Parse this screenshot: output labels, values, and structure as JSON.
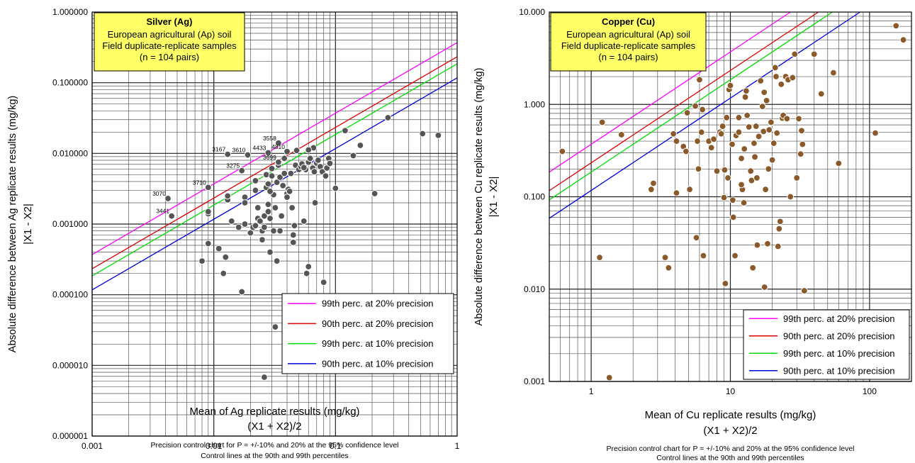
{
  "chart_data": [
    {
      "type": "scatter",
      "log_x": true,
      "log_y": true,
      "title_box": {
        "title": "Silver (Ag)",
        "lines": [
          "European agricultural (Ap) soil",
          "Field duplicate-replicate samples",
          "(n = 104 pairs)"
        ]
      },
      "xlim": [
        0.001,
        1
      ],
      "ylim": [
        1e-06,
        1
      ],
      "x_ticks": [
        0.001,
        0.01,
        0.1,
        1
      ],
      "x_tick_labels": [
        "0.001",
        "0.01",
        "0.1",
        "1"
      ],
      "y_ticks": [
        1e-06,
        1e-05,
        0.0001,
        0.001,
        0.01,
        0.1,
        1
      ],
      "y_tick_labels": [
        "0.000001",
        "0.000010",
        "0.000100",
        "0.001000",
        "0.010000",
        "0.100000",
        "1.000000"
      ],
      "xlabel": "Mean of Ag replicate results (mg/kg)",
      "xlabel2": "(X1 + X2)/2",
      "ylabel": "Absolute difference between Ag replicate results (mg/kg)",
      "ylabel2": "|X1 - X2|",
      "caption": [
        "Precision control chart for P = +/-10% and 20% at the 95% confidence level",
        "Control lines at the 90th and 99th percentiles"
      ],
      "control_lines": [
        {
          "name": "99th perc. at 20% precision",
          "color": "#ff00ff",
          "k": 0.37
        },
        {
          "name": "90th perc. at 20% precision",
          "color": "#e00000",
          "k": 0.233
        },
        {
          "name": "99th perc. at 10% precision",
          "color": "#00dd00",
          "k": 0.185
        },
        {
          "name": "90th perc. at 10% precision",
          "color": "#0000dd",
          "k": 0.117
        }
      ],
      "legend_position": "bottom-right",
      "point_color": "#555555",
      "labels": [
        {
          "text": "3070",
          "x": 0.0042,
          "y": 0.0023
        },
        {
          "text": "3441",
          "x": 0.0045,
          "y": 0.0013
        },
        {
          "text": "3710",
          "x": 0.009,
          "y": 0.0033
        },
        {
          "text": "3167",
          "x": 0.013,
          "y": 0.0097
        },
        {
          "text": "3610",
          "x": 0.019,
          "y": 0.0095
        },
        {
          "text": "3275",
          "x": 0.017,
          "y": 0.0057
        },
        {
          "text": "4433",
          "x": 0.028,
          "y": 0.0102
        },
        {
          "text": "3558",
          "x": 0.034,
          "y": 0.014
        },
        {
          "text": "4810",
          "x": 0.04,
          "y": 0.0106
        },
        {
          "text": "3699",
          "x": 0.034,
          "y": 0.0075
        }
      ],
      "points": [
        [
          0.0042,
          0.0023
        ],
        [
          0.0045,
          0.0013
        ],
        [
          0.009,
          0.0033
        ],
        [
          0.009,
          0.0014
        ],
        [
          0.009,
          0.0015
        ],
        [
          0.009,
          0.00053
        ],
        [
          0.008,
          0.0003
        ],
        [
          0.011,
          0.00045
        ],
        [
          0.012,
          0.0002
        ],
        [
          0.0125,
          0.00034
        ],
        [
          0.013,
          0.0022
        ],
        [
          0.013,
          0.0025
        ],
        [
          0.014,
          0.0011
        ],
        [
          0.016,
          0.0009
        ],
        [
          0.017,
          0.00011
        ],
        [
          0.018,
          0.001
        ],
        [
          0.018,
          0.0024
        ],
        [
          0.018,
          0.002
        ],
        [
          0.02,
          0.00075
        ],
        [
          0.021,
          0.0009
        ],
        [
          0.022,
          0.00095
        ],
        [
          0.022,
          0.003
        ],
        [
          0.023,
          0.0017
        ],
        [
          0.023,
          0.0012
        ],
        [
          0.024,
          0.0011
        ],
        [
          0.025,
          0.0006
        ],
        [
          0.025,
          0.0008
        ],
        [
          0.026,
          0.0013
        ],
        [
          0.026,
          0.0009
        ],
        [
          0.027,
          0.0033
        ],
        [
          0.027,
          0.005
        ],
        [
          0.028,
          0.0037
        ],
        [
          0.028,
          0.0019
        ],
        [
          0.028,
          0.0015
        ],
        [
          0.029,
          0.0004
        ],
        [
          0.029,
          0.0012
        ],
        [
          0.03,
          0.0061
        ],
        [
          0.03,
          0.0048
        ],
        [
          0.031,
          0.0026
        ],
        [
          0.031,
          0.0008
        ],
        [
          0.032,
          0.0017
        ],
        [
          0.032,
          3.5e-05
        ],
        [
          0.033,
          0.0039
        ],
        [
          0.033,
          0.0003
        ],
        [
          0.034,
          0.0068
        ],
        [
          0.035,
          0.0008
        ],
        [
          0.035,
          0.0046
        ],
        [
          0.036,
          0.0013
        ],
        [
          0.037,
          0.0035
        ],
        [
          0.038,
          0.0052
        ],
        [
          0.04,
          0.0027
        ],
        [
          0.04,
          0.0024
        ],
        [
          0.041,
          0.0031
        ],
        [
          0.042,
          0.0029
        ],
        [
          0.043,
          0.0052
        ],
        [
          0.044,
          0.0017
        ],
        [
          0.045,
          0.00055
        ],
        [
          0.045,
          0.0007
        ],
        [
          0.046,
          0.00095
        ],
        [
          0.047,
          0.0068
        ],
        [
          0.05,
          0.0059
        ],
        [
          0.052,
          0.0065
        ],
        [
          0.053,
          0.0071
        ],
        [
          0.055,
          0.0011
        ],
        [
          0.057,
          0.0059
        ],
        [
          0.058,
          0.0002
        ],
        [
          0.06,
          0.00025
        ],
        [
          0.06,
          0.0075
        ],
        [
          0.062,
          0.0085
        ],
        [
          0.065,
          0.0062
        ],
        [
          0.066,
          0.012
        ],
        [
          0.067,
          0.0055
        ],
        [
          0.068,
          0.002
        ],
        [
          0.07,
          0.0073
        ],
        [
          0.072,
          0.008
        ],
        [
          0.075,
          0.0065
        ],
        [
          0.078,
          0.0055
        ],
        [
          0.08,
          0.00015
        ],
        [
          0.083,
          0.0048
        ],
        [
          0.085,
          0.0062
        ],
        [
          0.088,
          0.0085
        ],
        [
          0.09,
          0.0072
        ],
        [
          0.1,
          0.0032
        ],
        [
          0.12,
          0.021
        ],
        [
          0.14,
          0.0093
        ],
        [
          0.16,
          0.013
        ],
        [
          0.21,
          0.0027
        ],
        [
          0.27,
          0.032
        ],
        [
          0.52,
          0.019
        ],
        [
          0.7,
          0.018
        ],
        [
          0.013,
          0.0097
        ],
        [
          0.019,
          0.0095
        ],
        [
          0.017,
          0.0057
        ],
        [
          0.028,
          0.0102
        ],
        [
          0.034,
          0.014
        ],
        [
          0.04,
          0.0106
        ],
        [
          0.034,
          0.0075
        ],
        [
          0.026,
          6.8e-06
        ],
        [
          0.055,
          0.0063
        ],
        [
          0.06,
          0.0112
        ],
        [
          0.022,
          0.0041
        ],
        [
          0.038,
          0.0085
        ],
        [
          0.048,
          0.011
        ],
        [
          0.029,
          0.0029
        ]
      ]
    },
    {
      "type": "scatter",
      "log_x": true,
      "log_y": true,
      "title_box": {
        "title": "Copper (Cu)",
        "lines": [
          "European agricultural (Ap) soil",
          "Field duplicate-replicate samples",
          "(n = 104 pairs)"
        ]
      },
      "xlim": [
        0.5,
        200
      ],
      "ylim": [
        0.001,
        10
      ],
      "x_ticks": [
        1,
        10,
        100
      ],
      "x_tick_labels": [
        "1",
        "10",
        "100"
      ],
      "y_ticks": [
        0.001,
        0.01,
        0.1,
        1,
        10
      ],
      "y_tick_labels": [
        "0.001",
        "0.010",
        "0.100",
        "1.000",
        "10.000"
      ],
      "xlabel": "Mean of Cu replicate results (mg/kg)",
      "xlabel2": "(X1 + X2)/2",
      "ylabel": "Absolute difference between Cu replicate results (mg/kg)",
      "ylabel2": "|X1 - X2|",
      "caption": [
        "Precision control chart for P = +/-10% and 20% at the 95% confidence level",
        "Control lines at the 90th and 99th percentiles"
      ],
      "control_lines": [
        {
          "name": "99th perc. at 20% precision",
          "color": "#ff00ff",
          "k": 0.37
        },
        {
          "name": "90th perc. at 20% precision",
          "color": "#e00000",
          "k": 0.233
        },
        {
          "name": "99th perc. at 10% precision",
          "color": "#00dd00",
          "k": 0.185
        },
        {
          "name": "90th perc. at 10% precision",
          "color": "#0000dd",
          "k": 0.117
        }
      ],
      "legend_position": "bottom-right",
      "point_color": "#8b5a2b",
      "labels": [],
      "points": [
        [
          0.62,
          0.31
        ],
        [
          1.2,
          0.64
        ],
        [
          1.15,
          0.022
        ],
        [
          1.35,
          0.0011
        ],
        [
          1.65,
          0.47
        ],
        [
          2.7,
          0.12
        ],
        [
          2.8,
          0.14
        ],
        [
          3.4,
          0.022
        ],
        [
          3.6,
          0.017
        ],
        [
          3.9,
          0.48
        ],
        [
          4.1,
          0.11
        ],
        [
          4.1,
          0.4
        ],
        [
          4.6,
          0.35
        ],
        [
          4.8,
          0.31
        ],
        [
          4.9,
          0.81
        ],
        [
          5.1,
          0.12
        ],
        [
          5.6,
          0.96
        ],
        [
          5.7,
          0.036
        ],
        [
          5.8,
          0.4
        ],
        [
          5.9,
          0.2
        ],
        [
          6.0,
          1.85
        ],
        [
          6.2,
          0.5
        ],
        [
          6.3,
          0.88
        ],
        [
          6.4,
          0.023
        ],
        [
          7.0,
          0.4
        ],
        [
          7.3,
          0.34
        ],
        [
          7.6,
          0.42
        ],
        [
          8.0,
          0.19
        ],
        [
          8.4,
          0.5
        ],
        [
          8.6,
          0.48
        ],
        [
          9.0,
          0.098
        ],
        [
          9.1,
          0.195
        ],
        [
          9.2,
          0.0115
        ],
        [
          9.4,
          0.72
        ],
        [
          9.6,
          0.16
        ],
        [
          9.8,
          1.45
        ],
        [
          10.0,
          1.6
        ],
        [
          10.3,
          0.37
        ],
        [
          10.4,
          0.092
        ],
        [
          10.5,
          0.06
        ],
        [
          10.8,
          0.023
        ],
        [
          11.0,
          0.46
        ],
        [
          11.5,
          0.72
        ],
        [
          12.0,
          0.26
        ],
        [
          12.2,
          0.12
        ],
        [
          12.5,
          0.086
        ],
        [
          12.6,
          0.33
        ],
        [
          12.8,
          1.2
        ],
        [
          13.0,
          1.4
        ],
        [
          13.2,
          0.76
        ],
        [
          13.6,
          0.57
        ],
        [
          14.0,
          0.19
        ],
        [
          14.2,
          0.15
        ],
        [
          14.5,
          0.017
        ],
        [
          14.8,
          0.38
        ],
        [
          15.0,
          0.27
        ],
        [
          15.3,
          0.58
        ],
        [
          15.6,
          0.03
        ],
        [
          16.0,
          0.45
        ],
        [
          16.5,
          1.8
        ],
        [
          17.0,
          0.95
        ],
        [
          17.3,
          0.51
        ],
        [
          17.6,
          0.0105
        ],
        [
          17.9,
          0.12
        ],
        [
          18.2,
          1.1
        ],
        [
          18.5,
          0.031
        ],
        [
          18.8,
          0.2
        ],
        [
          19.0,
          0.53
        ],
        [
          19.6,
          0.64
        ],
        [
          20.0,
          0.25
        ],
        [
          20.5,
          0.38
        ],
        [
          21.0,
          2.5
        ],
        [
          21.3,
          2.0
        ],
        [
          21.6,
          0.49
        ],
        [
          22.0,
          0.029
        ],
        [
          22.4,
          0.045
        ],
        [
          22.8,
          0.054
        ],
        [
          23.2,
          1.65
        ],
        [
          23.6,
          0.71
        ],
        [
          24.0,
          0.76
        ],
        [
          25.0,
          2.0
        ],
        [
          25.5,
          0.7
        ],
        [
          26.0,
          1.85
        ],
        [
          27.0,
          0.1
        ],
        [
          28.0,
          1.95
        ],
        [
          29.0,
          3.5
        ],
        [
          30.0,
          0.16
        ],
        [
          31.0,
          0.7
        ],
        [
          32.0,
          0.29
        ],
        [
          32.5,
          0.52
        ],
        [
          33.0,
          0.37
        ],
        [
          34.0,
          0.0096
        ],
        [
          40.0,
          3.5
        ],
        [
          45.0,
          1.3
        ],
        [
          55.0,
          2.2
        ],
        [
          60.0,
          0.23
        ],
        [
          110.0,
          0.49
        ],
        [
          155.0,
          7.1
        ],
        [
          175.0,
          5.0
        ],
        [
          11.5,
          0.5
        ],
        [
          15.5,
          0.16
        ],
        [
          8.8,
          0.58
        ],
        [
          12.0,
          0.135
        ],
        [
          17.5,
          1.35
        ]
      ]
    }
  ]
}
